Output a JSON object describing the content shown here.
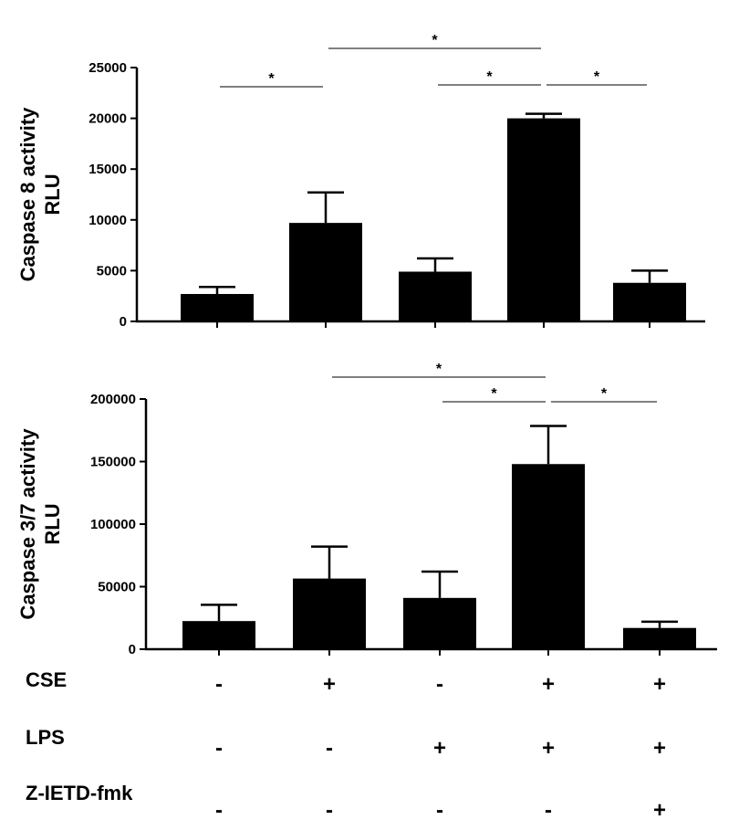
{
  "chart_data": [
    {
      "type": "bar",
      "title": "",
      "xlabel": "",
      "ylabel": "Caspase 8 activity RLU",
      "ylabel_lines": [
        "Caspase 8 activity",
        "RLU"
      ],
      "ylim": [
        0,
        25000
      ],
      "yticks": [
        0,
        5000,
        10000,
        15000,
        20000,
        25000
      ],
      "grid": false,
      "values": [
        2700,
        9700,
        4900,
        20000,
        3800
      ],
      "errors": [
        700,
        3000,
        1300,
        450,
        1200
      ],
      "significance": [
        {
          "from": 0,
          "to": 1,
          "label": "*"
        },
        {
          "from": 1,
          "to": 3,
          "label": "*"
        },
        {
          "from": 2,
          "to": 3,
          "label": "*"
        },
        {
          "from": 3,
          "to": 4,
          "label": "*"
        }
      ]
    },
    {
      "type": "bar",
      "title": "",
      "xlabel": "",
      "ylabel": "Caspase 3/7 activity RLU",
      "ylabel_lines": [
        "Caspase 3/7 activity",
        "RLU"
      ],
      "ylim": [
        0,
        200000
      ],
      "yticks": [
        0,
        50000,
        100000,
        150000,
        200000
      ],
      "grid": false,
      "values": [
        22500,
        56500,
        41000,
        148000,
        17000
      ],
      "errors": [
        13000,
        25500,
        21000,
        30500,
        5000
      ],
      "significance": [
        {
          "from": 1,
          "to": 3,
          "label": "*"
        },
        {
          "from": 2,
          "to": 3,
          "label": "*"
        },
        {
          "from": 3,
          "to": 4,
          "label": "*"
        }
      ]
    }
  ],
  "conditions": [
    {
      "label": "CSE",
      "signs": [
        "-",
        "+",
        "-",
        "+",
        "+"
      ]
    },
    {
      "label": "LPS",
      "signs": [
        "-",
        "-",
        "+",
        "+",
        "+"
      ]
    },
    {
      "label": "Z-IETD-fmk",
      "signs": [
        "-",
        "-",
        "-",
        "-",
        "+"
      ]
    }
  ],
  "colors": {
    "bar": "#000000",
    "axis": "#000000",
    "background": "#ffffff"
  }
}
